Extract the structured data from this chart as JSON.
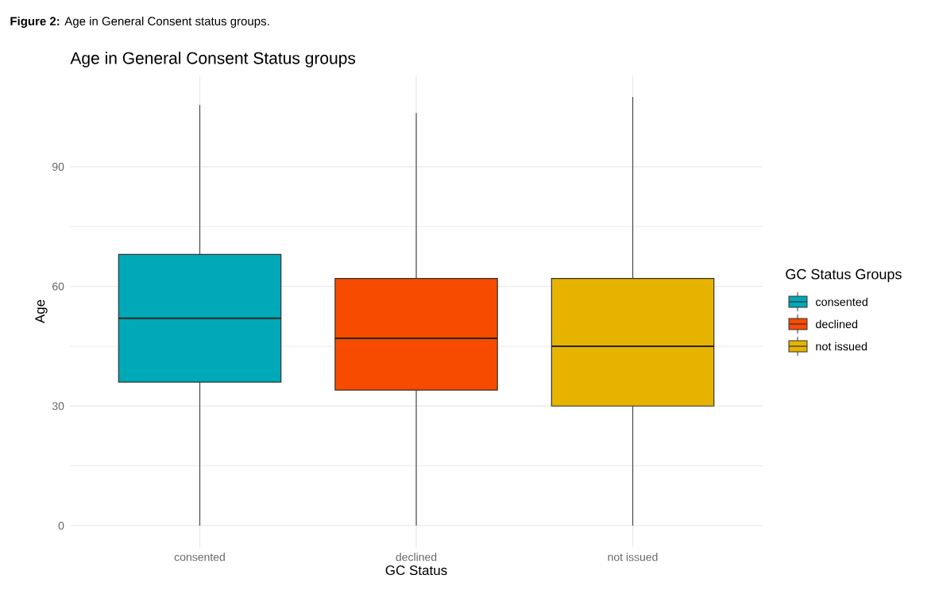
{
  "chart_data": {
    "type": "box",
    "title": "Age in General Consent Status groups",
    "xlabel": "GC Status",
    "ylabel": "Age",
    "legend_title": "GC Status Groups",
    "annotations": [
      "**Figure 2:** Age in General Consent status groups."
    ],
    "categories": [
      "consented",
      "declined",
      "not issued"
    ],
    "series": [
      {
        "name": "consented",
        "color": "#00a9b8",
        "boxes": [
          {
            "low": 0,
            "q1": 36,
            "median": 52,
            "q3": 68,
            "high": 105.5
          },
          null,
          null
        ]
      },
      {
        "name": "declined",
        "color": "#f74b00",
        "boxes": [
          null,
          {
            "low": 0,
            "q1": 34,
            "median": 47,
            "q3": 62,
            "high": 103.5
          },
          null
        ]
      },
      {
        "name": "not issued",
        "color": "#e6b300",
        "boxes": [
          null,
          null,
          {
            "low": 0,
            "q1": 30,
            "median": 45,
            "q3": 62,
            "high": 107.5
          }
        ]
      }
    ],
    "ylim": [
      -5.4,
      112.9
    ],
    "yticks": [
      0,
      30,
      60,
      90
    ],
    "grid": true,
    "legend": "right"
  }
}
